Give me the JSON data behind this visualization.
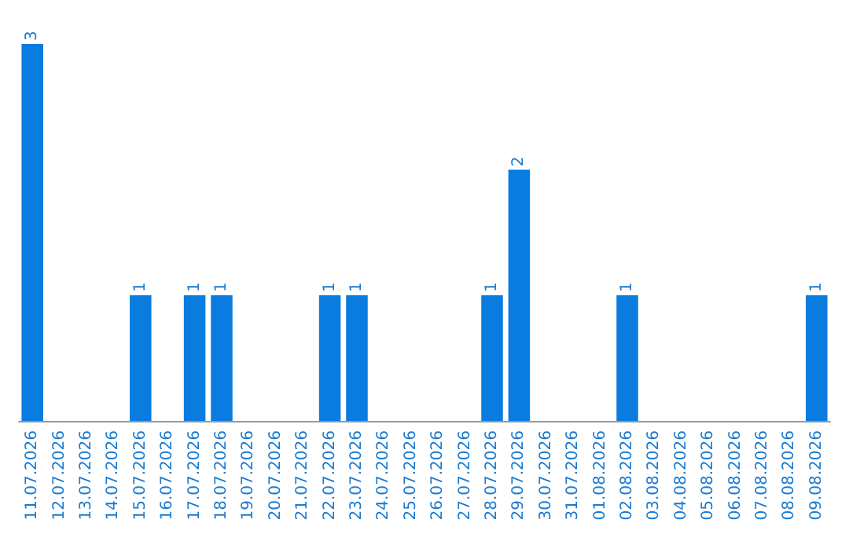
{
  "chart_data": {
    "type": "bar",
    "categories": [
      "11.07.2026",
      "12.07.2026",
      "13.07.2026",
      "14.07.2026",
      "15.07.2026",
      "16.07.2026",
      "17.07.2026",
      "18.07.2026",
      "19.07.2026",
      "20.07.2026",
      "21.07.2026",
      "22.07.2026",
      "23.07.2026",
      "24.07.2026",
      "25.07.2026",
      "26.07.2026",
      "27.07.2026",
      "28.07.2026",
      "29.07.2026",
      "30.07.2026",
      "31.07.2026",
      "01.08.2026",
      "02.08.2026",
      "03.08.2026",
      "04.08.2026",
      "05.08.2026",
      "06.08.2026",
      "07.08.2026",
      "08.08.2026",
      "09.08.2026"
    ],
    "values": [
      3,
      0,
      0,
      0,
      1,
      0,
      1,
      1,
      0,
      0,
      0,
      1,
      1,
      0,
      0,
      0,
      0,
      1,
      2,
      0,
      0,
      0,
      1,
      0,
      0,
      0,
      0,
      0,
      0,
      1
    ],
    "value_labels": [
      "3",
      null,
      null,
      null,
      "1",
      null,
      "1",
      "1",
      null,
      null,
      null,
      "1",
      "1",
      null,
      null,
      null,
      null,
      "1",
      "2",
      null,
      null,
      null,
      "1",
      null,
      null,
      null,
      null,
      null,
      null,
      "1"
    ],
    "color": "#0a7ce0"
  }
}
